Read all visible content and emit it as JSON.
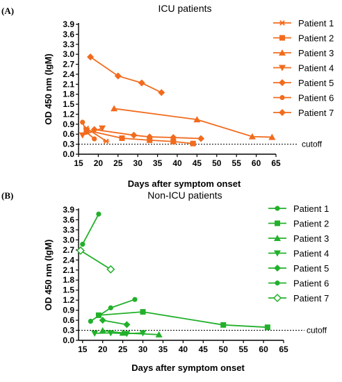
{
  "chart_data": [
    {
      "type": "line",
      "panel_label": "(A)",
      "title": "ICU patients",
      "xlabel": "Days after symptom onset",
      "ylabel": "OD 450 nm (IgM)",
      "xlim": [
        15,
        65
      ],
      "ylim": [
        0.0,
        3.9
      ],
      "xticks": [
        "15",
        "20",
        "25",
        "30",
        "35",
        "40",
        "45",
        "50",
        "55",
        "60",
        "65"
      ],
      "yticks": [
        "0.0",
        "0.3",
        "0.6",
        "0.9",
        "1.2",
        "1.5",
        "1.8",
        "2.1",
        "2.4",
        "2.7",
        "3.0",
        "3.3",
        "3.6",
        "3.9"
      ],
      "color": "#f26b1d",
      "legend_position": "right",
      "cutoff": {
        "label": "cutoff",
        "value": 0.3
      },
      "series": [
        {
          "name": "Patient 1",
          "marker": "asterisk",
          "x": [
            17,
            22
          ],
          "y": [
            0.78,
            0.39
          ]
        },
        {
          "name": "Patient 2",
          "marker": "square",
          "x": [
            17,
            26,
            33,
            39,
            44
          ],
          "y": [
            0.72,
            0.48,
            0.42,
            0.38,
            0.32
          ]
        },
        {
          "name": "Patient 3",
          "marker": "triangle-up",
          "x": [
            24,
            45,
            59,
            64
          ],
          "y": [
            1.37,
            1.04,
            0.53,
            0.51
          ]
        },
        {
          "name": "Patient 4",
          "marker": "triangle-down",
          "x": [
            16,
            21
          ],
          "y": [
            0.57,
            0.78
          ]
        },
        {
          "name": "Patient 5",
          "marker": "diamond",
          "x": [
            18,
            25,
            31,
            36
          ],
          "y": [
            2.92,
            2.35,
            2.14,
            1.85
          ]
        },
        {
          "name": "Patient 6",
          "marker": "circle",
          "x": [
            16,
            17,
            19
          ],
          "y": [
            0.96,
            0.66,
            0.46
          ]
        },
        {
          "name": "Patient 7",
          "marker": "diamond",
          "x": [
            19,
            29,
            33,
            39,
            46
          ],
          "y": [
            0.74,
            0.57,
            0.52,
            0.5,
            0.47
          ]
        }
      ]
    },
    {
      "type": "line",
      "panel_label": "(B)",
      "title": "Non-ICU patients",
      "xlabel": "Days after symptom onset",
      "ylabel": "OD 450 nm (IgM)",
      "xlim": [
        14,
        65
      ],
      "ylim": [
        0.0,
        3.9
      ],
      "xticks": [
        "15",
        "20",
        "25",
        "30",
        "35",
        "40",
        "45",
        "50",
        "55",
        "60",
        "65"
      ],
      "yticks": [
        "0.0",
        "0.3",
        "0.6",
        "0.9",
        "1.2",
        "1.5",
        "1.8",
        "2.1",
        "2.4",
        "2.7",
        "3.0",
        "3.3",
        "3.6",
        "3.9"
      ],
      "color": "#22b02b",
      "legend_position": "right",
      "cutoff": {
        "label": "cutoff",
        "value": 0.3
      },
      "series": [
        {
          "name": "Patient 1",
          "marker": "circle",
          "x": [
            17,
            22,
            28
          ],
          "y": [
            0.57,
            0.97,
            1.22
          ]
        },
        {
          "name": "Patient 2",
          "marker": "square",
          "x": [
            19,
            30,
            50,
            61
          ],
          "y": [
            0.75,
            0.85,
            0.46,
            0.39
          ]
        },
        {
          "name": "Patient 3",
          "marker": "triangle-up",
          "x": [
            20,
            25,
            34
          ],
          "y": [
            0.29,
            0.22,
            0.17
          ]
        },
        {
          "name": "Patient 4",
          "marker": "triangle-down",
          "x": [
            18,
            22,
            26,
            30
          ],
          "y": [
            0.21,
            0.22,
            0.2,
            0.22
          ]
        },
        {
          "name": "Patient 5",
          "marker": "diamond",
          "x": [
            20,
            26
          ],
          "y": [
            0.6,
            0.47
          ]
        },
        {
          "name": "Patient 6",
          "marker": "circle",
          "x": [
            15,
            19
          ],
          "y": [
            2.87,
            3.77
          ]
        },
        {
          "name": "Patient 7",
          "marker": "diamond-open",
          "x": [
            14.5,
            22
          ],
          "y": [
            2.68,
            2.12
          ]
        }
      ]
    }
  ]
}
